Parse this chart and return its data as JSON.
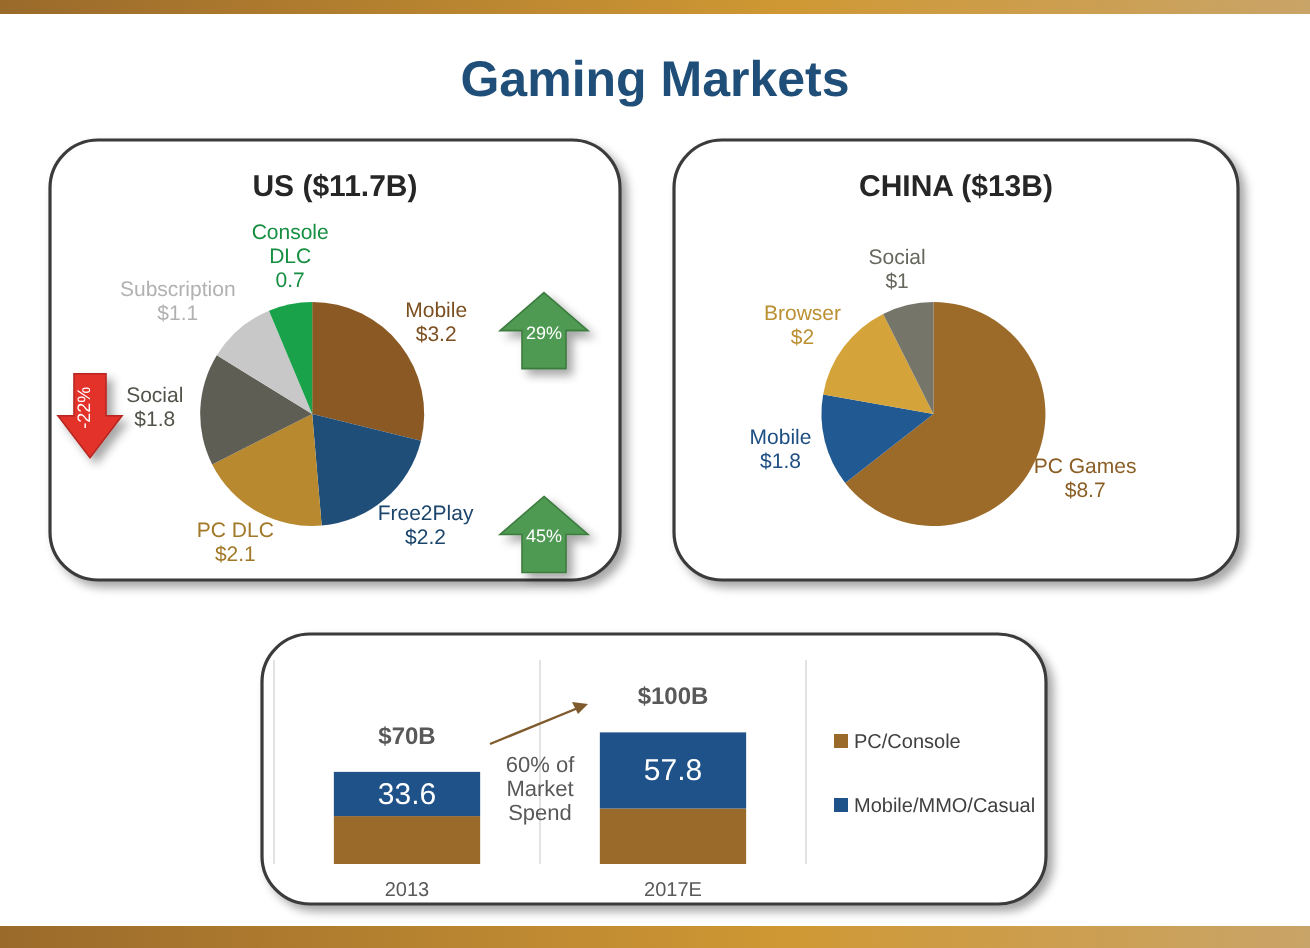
{
  "chart_data": [
    {
      "type": "other",
      "title": "Gaming Markets"
    },
    {
      "type": "pie",
      "title": "US ($11.7B)",
      "categories": [
        "Mobile",
        "Free2Play",
        "PC DLC",
        "Social",
        "Subscription",
        "Console DLC"
      ],
      "values": [
        3.2,
        2.2,
        2.1,
        1.8,
        1.1,
        0.7
      ],
      "colors": [
        "#8b5a24",
        "#1f4e79",
        "#b8892f",
        "#5e5e55",
        "#c8c8c8",
        "#1aa24b"
      ],
      "value_labels": [
        "$3.2",
        "$2.2",
        "$2.1",
        "$1.8",
        "$1.1",
        "0.7"
      ],
      "annotations": [
        {
          "text": "29%",
          "x": "Mobile"
        },
        {
          "text": "45%",
          "x": "Free2Play"
        },
        {
          "text": "-22%",
          "x": "Social"
        }
      ]
    },
    {
      "type": "pie",
      "title": "CHINA ($13B)",
      "categories": [
        "PC Games",
        "Mobile",
        "Browser",
        "Social"
      ],
      "values": [
        8.7,
        1.8,
        2,
        1
      ],
      "colors": [
        "#9c6b2a",
        "#215a93",
        "#d4a33a",
        "#75756a"
      ],
      "value_labels": [
        "$8.7",
        "$1.8",
        "$2",
        "$1"
      ]
    },
    {
      "type": "bar",
      "stacked": true,
      "categories": [
        "2013",
        "2017E"
      ],
      "series": [
        {
          "name": "PC/Console",
          "color": "#9a6a2b",
          "values": [
            36.4,
            42.2
          ]
        },
        {
          "name": "Mobile/MMO/Casual",
          "color": "#1f5289",
          "values": [
            33.6,
            57.8
          ],
          "value_labels": [
            "33.6",
            "57.8"
          ]
        }
      ],
      "totals": [
        "$70B",
        "$100B"
      ],
      "legend": "right",
      "grid": "x",
      "annotations": [
        "60% of Market Spend"
      ]
    }
  ]
}
